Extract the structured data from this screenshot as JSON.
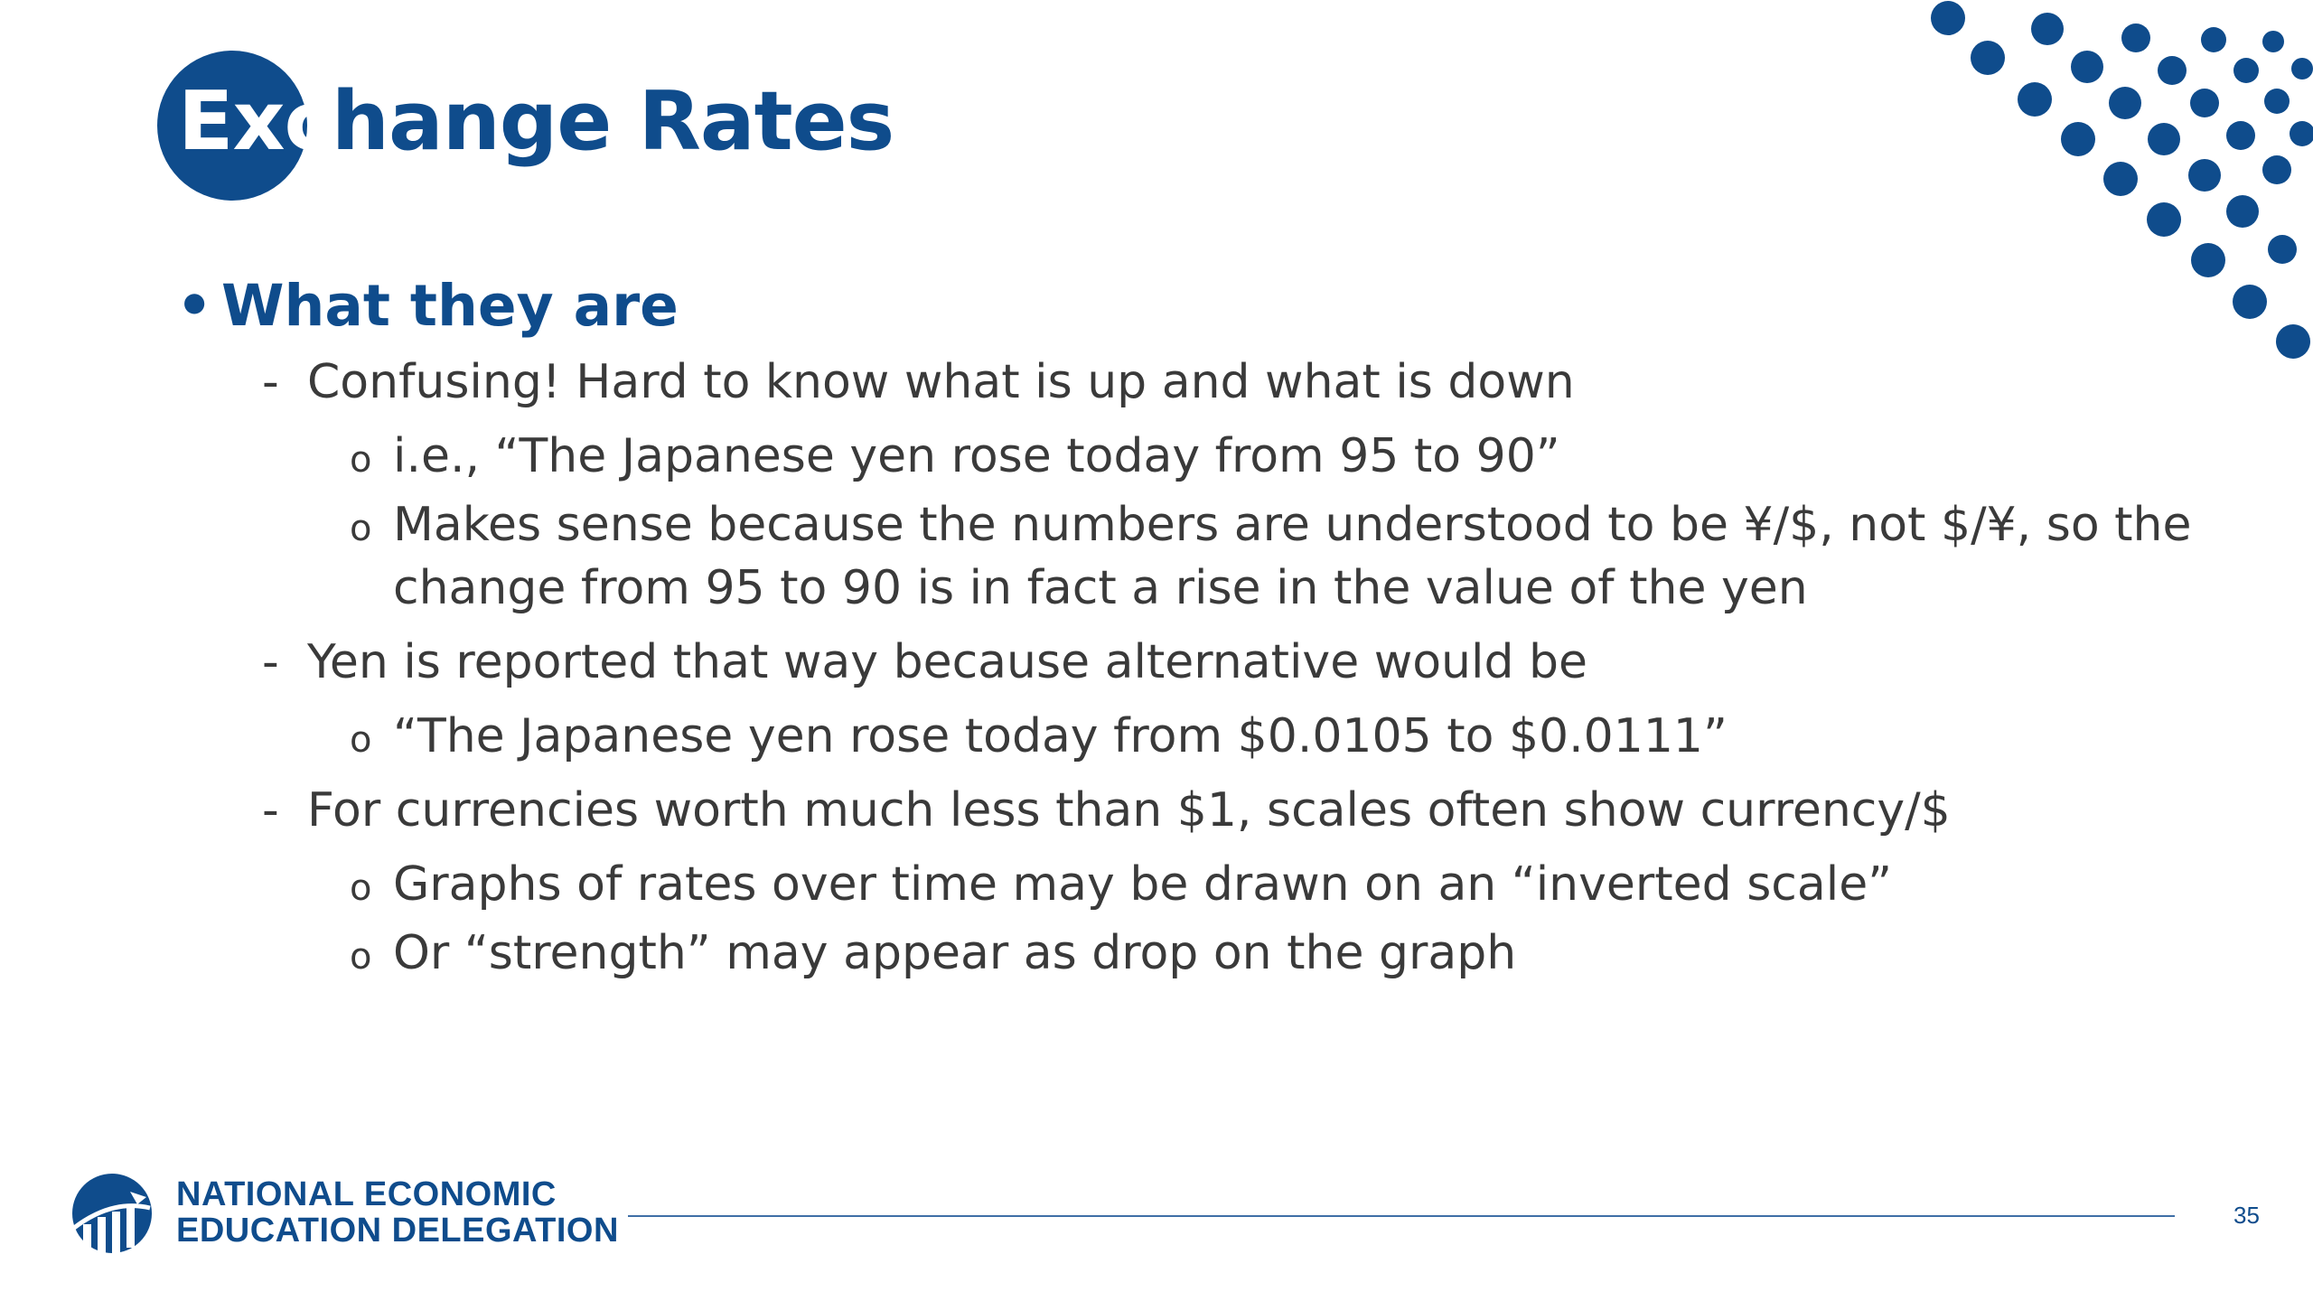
{
  "slide": {
    "title_lead": "Exc",
    "title_rest": "hange Rates",
    "bullets": [
      {
        "level": 1,
        "marker": "•",
        "text": "What they are"
      },
      {
        "level": 2,
        "marker": "-",
        "text": "Confusing!  Hard to know what is up and what is down"
      },
      {
        "level": 3,
        "marker": "o",
        "text": "i.e., “The Japanese yen rose today from 95 to 90”"
      },
      {
        "level": 3,
        "marker": "o",
        "text": "Makes sense because the numbers are understood to be ¥/$, not $/¥, so the change from 95 to 90 is in fact a rise in the value of the yen"
      },
      {
        "level": 2,
        "marker": "-",
        "text": "Yen is reported that way because alternative would be"
      },
      {
        "level": 3,
        "marker": "o",
        "text": "“The Japanese yen rose today from $0.0105 to $0.0111”"
      },
      {
        "level": 2,
        "marker": "-",
        "text": "For currencies worth much less than $1, scales often show currency/$"
      },
      {
        "level": 3,
        "marker": "o",
        "text": "Graphs of rates over time may be drawn on an “inverted scale”"
      },
      {
        "level": 3,
        "marker": "o",
        "text": "Or “strength” may appear as drop on the graph"
      }
    ]
  },
  "footer": {
    "org_line1": "NATIONAL ECONOMIC",
    "org_line2": "EDUCATION DELEGATION",
    "page_number": "35"
  },
  "colors": {
    "brand_blue": "#0f4c8c",
    "body_text": "#3a3a3a"
  },
  "icons": {
    "logo": "globe-chart-icon",
    "decoration": "dot-grid-decoration"
  }
}
